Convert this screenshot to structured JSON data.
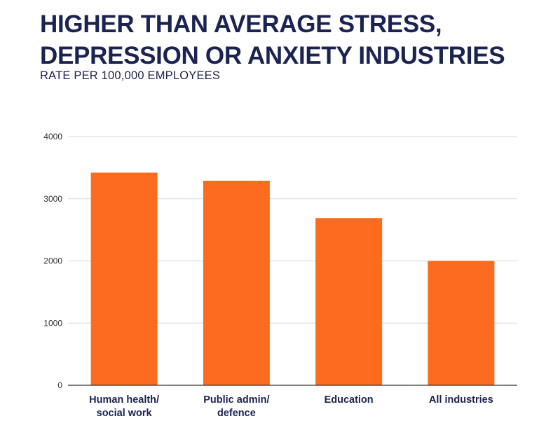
{
  "header": {
    "title_line1": "HIGHER THAN AVERAGE STRESS,",
    "title_line2": "DEPRESSION OR ANXIETY INDUSTRIES",
    "subtitle": "RATE PER 100,000 EMPLOYEES"
  },
  "colors": {
    "title": "#1b2350",
    "bar": "#fc6b1e",
    "grid": "#d9d9d9",
    "axis": "#333333"
  },
  "chart_data": {
    "type": "bar",
    "title": "HIGHER THAN AVERAGE STRESS, DEPRESSION OR ANXIETY INDUSTRIES",
    "subtitle": "RATE PER 100,000 EMPLOYEES",
    "categories": [
      [
        "Human health/",
        "social work"
      ],
      [
        "Public admin/",
        "defence"
      ],
      [
        "Education"
      ],
      [
        "All industries"
      ]
    ],
    "values": [
      3420,
      3290,
      2690,
      2000
    ],
    "xlabel": "",
    "ylabel": "",
    "ylim": [
      0,
      4000
    ],
    "yticks": [
      0,
      1000,
      2000,
      3000,
      4000
    ],
    "grid": true,
    "legend": "none"
  }
}
